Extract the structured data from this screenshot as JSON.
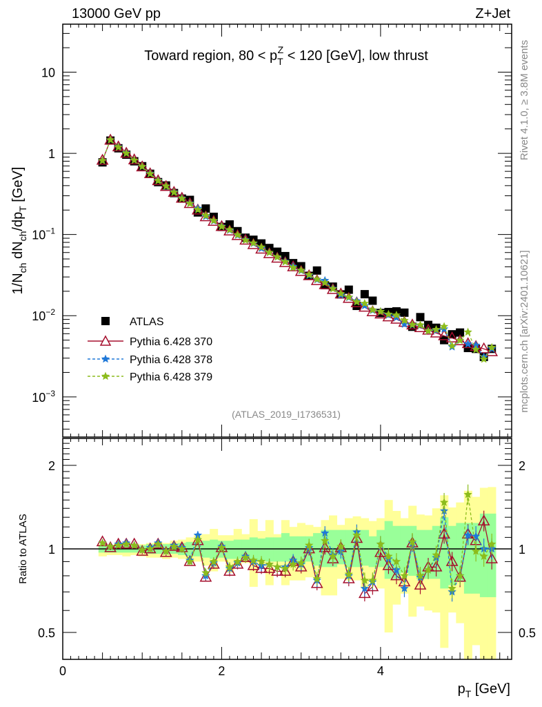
{
  "header": {
    "left": "13000 GeV pp",
    "right": "Z+Jet"
  },
  "side": {
    "rivet": "Rivet 4.1.0, ≥ 3.8M events",
    "mcplots": "mcplots.cern.ch [arXiv:2401.10621]"
  },
  "analysis_id": "(ATLAS_2019_I1736531)",
  "chart_data": {
    "type": "scatter",
    "title": {
      "pre": "Toward region, 80 < p",
      "sub": "T",
      "sup": "Z",
      "post": " < 120 [GeV], low thrust"
    },
    "ylabel": {
      "a": "1/N",
      "a_sub": "ch",
      "b": " dN",
      "b_sub": "ch",
      "c": "/dp",
      "c_sub": "T",
      "d": " [GeV]"
    },
    "xlabel": {
      "a": "p",
      "sub": "T",
      "b": " [GeV]"
    },
    "ratio_ylabel": "Ratio to ATLAS",
    "xlim": [
      0,
      5.65
    ],
    "ylim": [
      0.00032,
      39
    ],
    "yscale": "log",
    "ratio_ylim": [
      0.4,
      2.5
    ],
    "ratio_yscale": "log",
    "xticks": [
      "0",
      "2",
      "4"
    ],
    "xtick_values": [
      0,
      2,
      4
    ],
    "yticks": [
      {
        "base": "10",
        "exp": ""
      },
      {
        "base": "1",
        "exp": ""
      },
      {
        "base": "10",
        "exp": "−1"
      },
      {
        "base": "10",
        "exp": "−2"
      },
      {
        "base": "10",
        "exp": "−3"
      }
    ],
    "ytick_values": [
      10,
      1,
      0.1,
      0.01,
      0.001
    ],
    "ratio_ticks": [
      "2",
      "1",
      "0.5"
    ],
    "ratio_tick_values": [
      2,
      1,
      0.5
    ],
    "legend": {
      "placement": "lower-left",
      "entries": [
        "ATLAS",
        "Pythia 6.428 370",
        "Pythia 6.428 378",
        "Pythia 6.428 379"
      ]
    },
    "colors": {
      "atlas": "#000000",
      "p370": "#a50f2d",
      "p378": "#1f78d8",
      "p379": "#8cbc1c",
      "band_outer": "#ffff99",
      "band_inner": "#99ff99"
    },
    "x": [
      0.5,
      0.6,
      0.7,
      0.8,
      0.9,
      1.0,
      1.1,
      1.2,
      1.3,
      1.4,
      1.5,
      1.6,
      1.7,
      1.8,
      1.9,
      2.0,
      2.1,
      2.2,
      2.3,
      2.4,
      2.5,
      2.6,
      2.7,
      2.8,
      2.9,
      3.0,
      3.1,
      3.2,
      3.3,
      3.4,
      3.5,
      3.6,
      3.7,
      3.8,
      3.9,
      4.0,
      4.1,
      4.2,
      4.3,
      4.4,
      4.5,
      4.6,
      4.7,
      4.8,
      4.9,
      5.0,
      5.1,
      5.2,
      5.3,
      5.4
    ],
    "atlas": [
      0.774,
      1.436,
      1.154,
      0.962,
      0.798,
      0.694,
      0.56,
      0.442,
      0.402,
      0.324,
      0.277,
      0.267,
      0.187,
      0.209,
      0.165,
      0.124,
      0.133,
      0.11,
      0.0914,
      0.0862,
      0.0776,
      0.0682,
      0.0614,
      0.0542,
      0.0444,
      0.0407,
      0.031,
      0.036,
      0.0238,
      0.0228,
      0.0183,
      0.0209,
      0.0132,
      0.0184,
      0.0153,
      0.0108,
      0.0111,
      0.0113,
      0.0109,
      0.0073,
      0.0096,
      0.0077,
      0.0071,
      0.005,
      0.0059,
      0.0062,
      0.004,
      0.0039,
      0.0031,
      0.0039
    ],
    "series": [
      {
        "name": "Pythia 6.428 370",
        "ratio": [
          1.06,
          1.01,
          1.04,
          1.04,
          1.04,
          0.98,
          1.0,
          1.04,
          0.97,
          1.02,
          1.01,
          0.9,
          1.07,
          0.79,
          0.88,
          1.01,
          0.83,
          0.88,
          0.93,
          0.87,
          0.85,
          0.85,
          0.83,
          0.83,
          0.9,
          0.86,
          1.0,
          0.75,
          1.01,
          0.92,
          1.01,
          0.78,
          1.09,
          0.69,
          0.73,
          0.97,
          0.87,
          0.8,
          0.76,
          1.05,
          0.74,
          0.86,
          0.86,
          1.13,
          0.9,
          0.79,
          1.13,
          1.07,
          1.26,
          0.92
        ]
      },
      {
        "name": "Pythia 6.428 378",
        "ratio": [
          1.05,
          1.02,
          1.04,
          1.05,
          1.03,
          0.99,
          1.01,
          1.05,
          0.98,
          1.03,
          1.01,
          0.91,
          1.12,
          0.8,
          0.89,
          1.02,
          0.85,
          0.89,
          0.94,
          0.9,
          0.87,
          0.88,
          0.86,
          0.86,
          0.91,
          0.88,
          1.01,
          0.77,
          1.14,
          0.95,
          0.98,
          0.8,
          1.15,
          0.72,
          0.76,
          1.04,
          0.92,
          0.84,
          0.72,
          1.05,
          0.79,
          0.84,
          0.93,
          1.37,
          0.7,
          0.8,
          1.12,
          1.11,
          1.0,
          1.0
        ]
      },
      {
        "name": "Pythia 6.428 379",
        "ratio": [
          1.05,
          1.02,
          1.03,
          1.04,
          1.03,
          0.99,
          1.0,
          1.04,
          0.98,
          1.02,
          1.0,
          0.9,
          1.08,
          0.82,
          0.9,
          1.01,
          0.86,
          0.9,
          0.93,
          0.91,
          0.9,
          0.88,
          0.86,
          0.85,
          0.88,
          0.89,
          1.03,
          0.78,
          1.07,
          0.94,
          1.02,
          0.81,
          1.12,
          0.77,
          0.77,
          1.04,
          0.94,
          0.9,
          0.8,
          1.06,
          0.8,
          0.84,
          0.95,
          1.47,
          0.72,
          0.8,
          1.57,
          0.98,
          0.94,
          1.04
        ]
      }
    ],
    "band_outer_hi": [
      1.04,
      1.03,
      1.03,
      1.04,
      1.03,
      1.04,
      1.05,
      1.06,
      1.05,
      1.07,
      1.08,
      1.1,
      1.12,
      1.13,
      1.18,
      1.12,
      1.12,
      1.18,
      1.13,
      1.28,
      1.16,
      1.27,
      1.13,
      1.27,
      1.2,
      1.24,
      1.22,
      1.2,
      1.27,
      1.32,
      1.22,
      1.29,
      1.31,
      1.29,
      1.26,
      1.29,
      1.5,
      1.37,
      1.29,
      1.43,
      1.33,
      1.32,
      1.4,
      1.56,
      1.41,
      1.47,
      1.62,
      1.54,
      1.66,
      1.67
    ],
    "band_outer_lo": [
      0.94,
      0.95,
      0.95,
      0.94,
      0.95,
      0.94,
      0.93,
      0.93,
      0.92,
      0.93,
      0.92,
      0.89,
      0.9,
      0.87,
      0.83,
      0.9,
      0.82,
      0.87,
      0.89,
      0.73,
      0.87,
      0.74,
      0.87,
      0.74,
      0.77,
      0.77,
      0.79,
      0.79,
      0.68,
      0.68,
      0.78,
      0.77,
      0.77,
      0.72,
      0.76,
      0.72,
      0.5,
      0.63,
      0.69,
      0.57,
      0.62,
      0.6,
      0.59,
      0.44,
      0.59,
      0.54,
      0.4,
      0.45,
      0.4,
      0.4
    ],
    "band_inner_hi": [
      1.03,
      1.03,
      1.03,
      1.03,
      1.03,
      1.03,
      1.04,
      1.04,
      1.04,
      1.04,
      1.05,
      1.06,
      1.06,
      1.07,
      1.08,
      1.07,
      1.07,
      1.08,
      1.08,
      1.1,
      1.09,
      1.1,
      1.1,
      1.14,
      1.11,
      1.11,
      1.11,
      1.14,
      1.17,
      1.17,
      1.17,
      1.17,
      1.17,
      1.17,
      1.11,
      1.17,
      1.26,
      1.21,
      1.21,
      1.21,
      1.17,
      1.17,
      1.21,
      1.3,
      1.21,
      1.24,
      1.24,
      1.24,
      1.34,
      1.34
    ],
    "band_inner_lo": [
      0.97,
      0.97,
      0.97,
      0.97,
      0.97,
      0.97,
      0.96,
      0.96,
      0.96,
      0.96,
      0.95,
      0.94,
      0.94,
      0.93,
      0.92,
      0.93,
      0.92,
      0.92,
      0.92,
      0.9,
      0.91,
      0.9,
      0.9,
      0.9,
      0.88,
      0.88,
      0.9,
      0.87,
      0.86,
      0.86,
      0.88,
      0.86,
      0.86,
      0.87,
      0.86,
      0.86,
      0.78,
      0.78,
      0.82,
      0.8,
      0.78,
      0.78,
      0.78,
      0.72,
      0.74,
      0.76,
      0.69,
      0.69,
      0.67,
      0.67
    ]
  }
}
